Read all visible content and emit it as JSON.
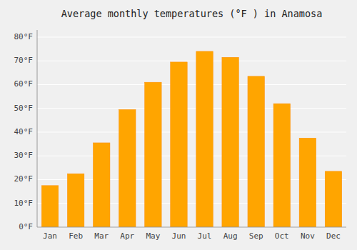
{
  "chart_data": {
    "type": "bar",
    "title": "Average monthly temperatures (°F ) in Anamosa",
    "categories": [
      "Jan",
      "Feb",
      "Mar",
      "Apr",
      "May",
      "Jun",
      "Jul",
      "Aug",
      "Sep",
      "Oct",
      "Nov",
      "Dec"
    ],
    "values": [
      17.5,
      22.5,
      35.5,
      49.5,
      61.0,
      69.5,
      74.0,
      71.5,
      63.5,
      52.0,
      37.5,
      23.5
    ],
    "color": "#FFA500",
    "ylim": [
      0,
      83
    ],
    "yticks": [
      {
        "value": 0,
        "label": "0°F"
      },
      {
        "value": 10,
        "label": "10°F"
      },
      {
        "value": 20,
        "label": "20°F"
      },
      {
        "value": 30,
        "label": "30°F"
      },
      {
        "value": 40,
        "label": "40°F"
      },
      {
        "value": 50,
        "label": "50°F"
      },
      {
        "value": 60,
        "label": "60°F"
      },
      {
        "value": 70,
        "label": "70°F"
      },
      {
        "value": 80,
        "label": "80°F"
      }
    ],
    "grid": true
  }
}
